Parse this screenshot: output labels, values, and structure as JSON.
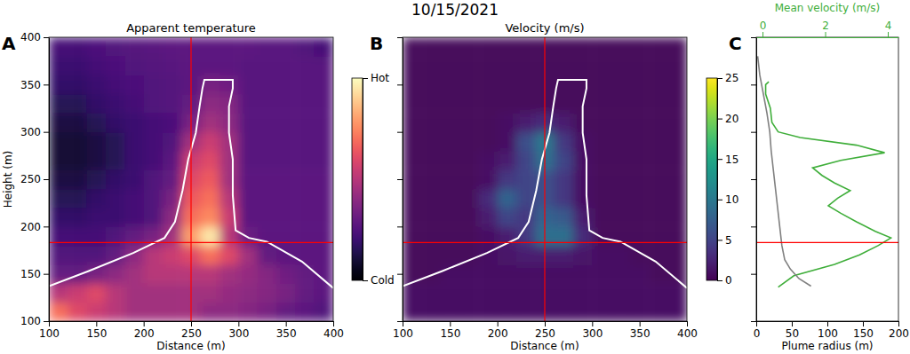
{
  "title": "10/15/2021",
  "chart_data": [
    {
      "panel": "A",
      "type": "heatmap",
      "title": "Apparent temperature",
      "x_label": "Distance (m)",
      "y_label": "Height (m)",
      "xlim": [
        100,
        400
      ],
      "ylim": [
        100,
        400
      ],
      "xticks": [
        100,
        150,
        200,
        250,
        300,
        350,
        400
      ],
      "yticks": [
        100,
        150,
        200,
        250,
        300,
        350,
        400
      ],
      "tick_labels": true,
      "color": "magma",
      "xbins": [
        100,
        120,
        140,
        160,
        180,
        200,
        220,
        240,
        260,
        280,
        300,
        320,
        340,
        360,
        380,
        400
      ],
      "ybins": [
        100,
        120,
        140,
        160,
        180,
        200,
        220,
        240,
        260,
        280,
        300,
        320,
        340,
        360,
        380,
        400
      ],
      "z": [
        [
          0.7,
          0.6,
          0.55,
          0.5,
          0.45,
          0.45,
          0.45,
          0.45,
          0.4,
          0.4,
          0.38,
          0.35,
          0.3,
          0.28,
          0.25
        ],
        [
          0.5,
          0.55,
          0.6,
          0.5,
          0.45,
          0.45,
          0.45,
          0.45,
          0.45,
          0.42,
          0.4,
          0.38,
          0.35,
          0.3,
          0.28
        ],
        [
          0.3,
          0.3,
          0.35,
          0.4,
          0.45,
          0.5,
          0.5,
          0.5,
          0.5,
          0.45,
          0.42,
          0.38,
          0.33,
          0.3,
          0.28
        ],
        [
          0.25,
          0.25,
          0.25,
          0.3,
          0.4,
          0.5,
          0.55,
          0.6,
          0.7,
          0.6,
          0.45,
          0.3,
          0.28,
          0.28,
          0.28
        ],
        [
          0.22,
          0.22,
          0.22,
          0.25,
          0.3,
          0.35,
          0.45,
          0.8,
          0.95,
          0.5,
          0.32,
          0.28,
          0.28,
          0.28,
          0.28
        ],
        [
          0.18,
          0.18,
          0.2,
          0.2,
          0.22,
          0.25,
          0.4,
          0.7,
          0.75,
          0.55,
          0.28,
          0.28,
          0.28,
          0.28,
          0.28
        ],
        [
          0.15,
          0.15,
          0.18,
          0.2,
          0.22,
          0.25,
          0.35,
          0.65,
          0.7,
          0.5,
          0.28,
          0.28,
          0.28,
          0.28,
          0.28
        ],
        [
          0.12,
          0.12,
          0.15,
          0.18,
          0.2,
          0.25,
          0.3,
          0.6,
          0.65,
          0.45,
          0.28,
          0.28,
          0.28,
          0.28,
          0.28
        ],
        [
          0.1,
          0.1,
          0.12,
          0.15,
          0.2,
          0.22,
          0.28,
          0.55,
          0.6,
          0.45,
          0.27,
          0.27,
          0.27,
          0.27,
          0.27
        ],
        [
          0.1,
          0.1,
          0.12,
          0.15,
          0.2,
          0.22,
          0.25,
          0.45,
          0.55,
          0.45,
          0.27,
          0.27,
          0.27,
          0.27,
          0.27
        ],
        [
          0.12,
          0.12,
          0.15,
          0.18,
          0.2,
          0.22,
          0.24,
          0.35,
          0.45,
          0.4,
          0.27,
          0.27,
          0.27,
          0.27,
          0.27
        ],
        [
          0.15,
          0.15,
          0.18,
          0.2,
          0.22,
          0.25,
          0.26,
          0.3,
          0.4,
          0.38,
          0.27,
          0.27,
          0.27,
          0.27,
          0.27
        ],
        [
          0.18,
          0.18,
          0.2,
          0.22,
          0.24,
          0.25,
          0.26,
          0.28,
          0.35,
          0.33,
          0.27,
          0.27,
          0.27,
          0.27,
          0.27
        ],
        [
          0.2,
          0.2,
          0.22,
          0.24,
          0.25,
          0.26,
          0.27,
          0.28,
          0.28,
          0.28,
          0.27,
          0.27,
          0.27,
          0.27,
          0.27
        ],
        [
          0.22,
          0.22,
          0.24,
          0.25,
          0.26,
          0.27,
          0.28,
          0.28,
          0.28,
          0.28,
          0.28,
          0.27,
          0.27,
          0.25,
          0.22
        ]
      ],
      "colorbar": {
        "range": [
          0,
          1
        ],
        "ticks": [
          {
            "value": 0,
            "label": "Cold"
          },
          {
            "value": 1,
            "label": "Hot"
          }
        ]
      },
      "outline": {
        "x": [
          100,
          142,
          189,
          222,
          233,
          241,
          247,
          255,
          259,
          262,
          264,
          294,
          294,
          290,
          290,
          294,
          294,
          297,
          311,
          330,
          367,
          400
        ],
        "y": [
          137,
          153,
          172,
          188,
          205,
          238,
          271,
          299,
          327,
          346,
          355,
          355,
          346,
          327,
          299,
          271,
          233,
          196,
          188,
          184,
          163,
          135
        ]
      },
      "crosshair": {
        "x": 250,
        "y": 183
      }
    },
    {
      "panel": "B",
      "type": "heatmap",
      "title": "Velocity (m/s)",
      "x_label": "Distance (m)",
      "xlim": [
        100,
        400
      ],
      "ylim": [
        100,
        400
      ],
      "xticks": [
        100,
        150,
        200,
        250,
        300,
        350,
        400
      ],
      "yticks": [
        100,
        150,
        200,
        250,
        300,
        350,
        400
      ],
      "tick_labels": "x",
      "color": "viridis",
      "xbins": [
        100,
        120,
        140,
        160,
        180,
        200,
        220,
        240,
        260,
        280,
        300,
        320,
        340,
        360,
        380,
        400
      ],
      "ybins": [
        100,
        120,
        140,
        160,
        180,
        200,
        220,
        240,
        260,
        280,
        300,
        320,
        340,
        360,
        380,
        400
      ],
      "z": [
        [
          1,
          1,
          1,
          1,
          1,
          1,
          1,
          1,
          1,
          1,
          1,
          1,
          1,
          1,
          1
        ],
        [
          1,
          1,
          1,
          1,
          1,
          1,
          1,
          1,
          1,
          1,
          1,
          1,
          1,
          1,
          1
        ],
        [
          0.5,
          0.5,
          1,
          1,
          1,
          1,
          1,
          1,
          1,
          1,
          1,
          1,
          1,
          0.5,
          0.5
        ],
        [
          0.5,
          0.5,
          0.5,
          0.5,
          1,
          1.5,
          2,
          2,
          2,
          1.5,
          1,
          1,
          0.5,
          0.5,
          0.5
        ],
        [
          0.5,
          0.5,
          0.5,
          0.5,
          1,
          2,
          4,
          9,
          9,
          3,
          0.5,
          0.5,
          0.5,
          0.5,
          0.5
        ],
        [
          0.5,
          0.5,
          0.5,
          0.5,
          2,
          5,
          4,
          8,
          7,
          2,
          0.5,
          0.5,
          0.5,
          0.5,
          0.5
        ],
        [
          0.5,
          0.5,
          0.5,
          0.5,
          3,
          8,
          5,
          6,
          4,
          1,
          0.5,
          0.5,
          0.5,
          0.5,
          0.5
        ],
        [
          0.5,
          0.5,
          0.5,
          0.5,
          1,
          4,
          5,
          6,
          4,
          1,
          0.5,
          0.5,
          0.5,
          0.5,
          0.5
        ],
        [
          0.5,
          0.5,
          0.5,
          0.5,
          1,
          2,
          5,
          9,
          5,
          1,
          0.5,
          0.5,
          0.5,
          0.5,
          0.5
        ],
        [
          0.5,
          0.5,
          0.5,
          0.5,
          0.5,
          1,
          6,
          10,
          4,
          1,
          0.5,
          0.5,
          0.5,
          0.5,
          0.5
        ],
        [
          0.5,
          0.5,
          0.5,
          0.5,
          0.5,
          1,
          2,
          3,
          2,
          0.5,
          0.5,
          0.5,
          0.5,
          0.5,
          0.5
        ],
        [
          0.5,
          0.5,
          0.5,
          0.5,
          0.5,
          0.5,
          0.5,
          0.5,
          0.5,
          0.5,
          0.5,
          0.5,
          0.5,
          0.5,
          0.5
        ],
        [
          0.5,
          0.5,
          0.5,
          0.5,
          0.5,
          0.5,
          0.5,
          0.5,
          0.5,
          0.5,
          0.5,
          0.5,
          0.5,
          0.5,
          0.5
        ],
        [
          0.5,
          0.5,
          0.5,
          0.5,
          0.5,
          0.5,
          0.5,
          0.5,
          0.5,
          0.5,
          0.5,
          0.5,
          0.5,
          0.5,
          0.5
        ],
        [
          0.5,
          0.5,
          0.5,
          0.5,
          0.5,
          0.5,
          0.5,
          0.5,
          0.5,
          0.5,
          0.5,
          0.5,
          0.5,
          0.5,
          0.5
        ]
      ],
      "colorbar": {
        "range": [
          0,
          25
        ],
        "ticks": [
          0,
          5,
          10,
          15,
          20,
          25
        ]
      },
      "outline": {
        "x": [
          100,
          142,
          189,
          222,
          233,
          241,
          247,
          255,
          259,
          262,
          264,
          294,
          294,
          290,
          290,
          294,
          294,
          297,
          311,
          330,
          367,
          400
        ],
        "y": [
          137,
          153,
          172,
          188,
          205,
          238,
          271,
          299,
          327,
          346,
          355,
          355,
          346,
          327,
          299,
          271,
          233,
          196,
          188,
          184,
          163,
          135
        ]
      },
      "crosshair": {
        "x": 250,
        "y": 183
      }
    },
    {
      "panel": "C",
      "type": "line",
      "x_label": "Plume radius (m)",
      "x2_label": "Mean velocity (m/s)",
      "xlim": [
        0,
        200
      ],
      "xticks": [
        0,
        50,
        100,
        150,
        200
      ],
      "x2lim": [
        -0.2,
        4.34
      ],
      "x2ticks": [
        0,
        2,
        4
      ],
      "ylim": [
        100,
        400
      ],
      "yticks": [
        100,
        150,
        200,
        250,
        300,
        350,
        400
      ],
      "tick_labels": "x",
      "series": [
        {
          "axis": "x2",
          "color": "#3fae3a",
          "x": [
            0.5,
            1.0,
            2.3,
            3.1,
            3.7,
            4.1,
            3.6,
            3.0,
            2.5,
            2.1,
            2.4,
            2.8,
            2.3,
            1.9,
            1.6,
            2.5,
            3.9,
            3.0,
            1.2,
            0.5,
            0.3,
            0.25,
            0.1,
            0.1,
            0.2
          ],
          "y": [
            136,
            148,
            160,
            170,
            180,
            188,
            195,
            205,
            214,
            222,
            230,
            238,
            246,
            254,
            262,
            270,
            278,
            286,
            294,
            300,
            310,
            325,
            340,
            350,
            353
          ]
        },
        {
          "color": "#808080",
          "x": [
            77,
            60,
            48,
            40,
            36,
            33,
            30,
            27,
            24,
            21,
            19,
            15,
            10,
            5,
            2
          ],
          "y": [
            137,
            145,
            155,
            165,
            180,
            200,
            220,
            240,
            260,
            280,
            300,
            320,
            340,
            360,
            380
          ]
        }
      ],
      "hline": 183
    }
  ]
}
